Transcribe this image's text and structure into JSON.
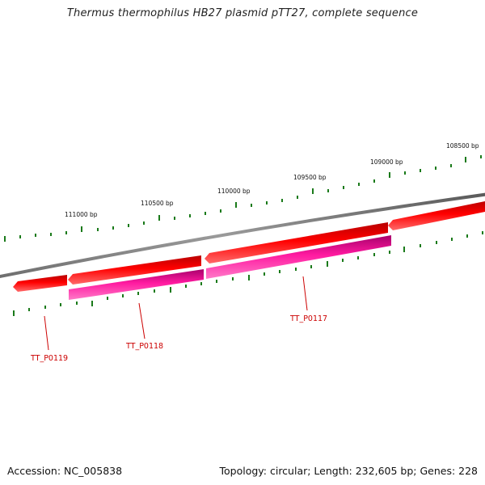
{
  "title": "Thermus thermophilus HB27 plasmid pTT27, complete sequence",
  "accession": "Accession: NC_005838",
  "topology": "Topology: circular; Length: 232,605 bp; Genes: 228",
  "ruler": {
    "labels": [
      {
        "text": "111000 bp"
      },
      {
        "text": "110500 bp"
      },
      {
        "text": "110000 bp"
      },
      {
        "text": "109500 bp"
      },
      {
        "text": "109000 bp"
      },
      {
        "text": "108500 bp"
      }
    ]
  },
  "genes": [
    {
      "label": "TT_P0119"
    },
    {
      "label": "TT_P0118"
    },
    {
      "label": "TT_P0117"
    }
  ],
  "colors": {
    "backbone": "#808080",
    "cds_forward": "#ff0000",
    "cds_reverse_magenta": "#ff1493",
    "tick": "#1a7a1a",
    "gene_label": "#cc0000"
  }
}
